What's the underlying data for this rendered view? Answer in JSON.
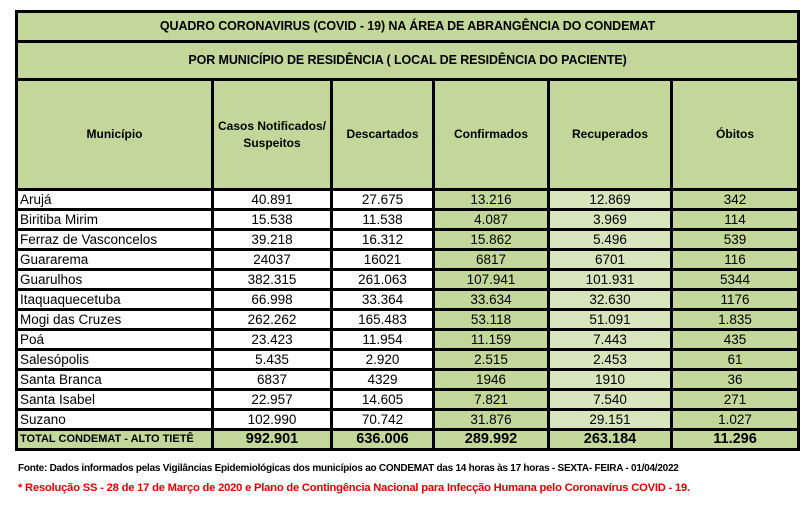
{
  "title": "QUADRO CORONAVIRUS (COVID - 19) NA ÁREA DE ABRANGÊNCIA DO CONDEMAT",
  "subtitle": "POR MUNICÍPIO DE RESIDÊNCIA ( LOCAL DE RESIDÊNCIA DO PACIENTE)",
  "columns": {
    "municipio": "Município",
    "notificados": "Casos Notificados/ Suspeitos",
    "descartados": "Descartados",
    "confirmados": "Confirmados",
    "recuperados": "Recuperados",
    "obitos": "Óbitos"
  },
  "rows": [
    {
      "municipio": "Arujá",
      "notificados": "40.891",
      "descartados": "27.675",
      "confirmados": "13.216",
      "recuperados": "12.869",
      "obitos": "342"
    },
    {
      "municipio": "Biritiba Mirim",
      "notificados": "15.538",
      "descartados": "11.538",
      "confirmados": "4.087",
      "recuperados": "3.969",
      "obitos": "114"
    },
    {
      "municipio": "Ferraz de Vasconcelos",
      "notificados": "39.218",
      "descartados": "16.312",
      "confirmados": "15.862",
      "recuperados": "5.496",
      "obitos": "539"
    },
    {
      "municipio": "Guararema",
      "notificados": "24037",
      "descartados": "16021",
      "confirmados": "6817",
      "recuperados": "6701",
      "obitos": "116"
    },
    {
      "municipio": "Guarulhos",
      "notificados": "382.315",
      "descartados": "261.063",
      "confirmados": "107.941",
      "recuperados": "101.931",
      "obitos": "5344"
    },
    {
      "municipio": "Itaquaquecetuba",
      "notificados": "66.998",
      "descartados": "33.364",
      "confirmados": "33.634",
      "recuperados": "32.630",
      "obitos": "1176"
    },
    {
      "municipio": "Mogi das Cruzes",
      "notificados": "262.262",
      "descartados": "165.483",
      "confirmados": "53.118",
      "recuperados": "51.091",
      "obitos": "1.835"
    },
    {
      "municipio": "Poá",
      "notificados": "23.423",
      "descartados": "11.954",
      "confirmados": "11.159",
      "recuperados": "7.443",
      "obitos": "435"
    },
    {
      "municipio": "Salesópolis",
      "notificados": "5.435",
      "descartados": "2.920",
      "confirmados": "2.515",
      "recuperados": "2.453",
      "obitos": "61"
    },
    {
      "municipio": "Santa Branca",
      "notificados": "6837",
      "descartados": "4329",
      "confirmados": "1946",
      "recuperados": "1910",
      "obitos": "36"
    },
    {
      "municipio": "Santa Isabel",
      "notificados": "22.957",
      "descartados": "14.605",
      "confirmados": "7.821",
      "recuperados": "7.540",
      "obitos": "271"
    },
    {
      "municipio": "Suzano",
      "notificados": "102.990",
      "descartados": "70.742",
      "confirmados": "31.876",
      "recuperados": "29.151",
      "obitos": "1.027"
    }
  ],
  "total": {
    "municipio": "TOTAL CONDEMAT - ALTO TIETÊ",
    "notificados": "992.901",
    "descartados": "636.006",
    "confirmados": "289.992",
    "recuperados": "263.184",
    "obitos": "11.296"
  },
  "footer": {
    "fonte": "Fonte: Dados informados pelas Vigilâncias Epidemiológicas dos municípios ao CONDEMAT das 14 horas às 17 horas - SEXTA- FEIRA - 01/04/2022",
    "nota": "* Resolução SS - 28 de 17 de Março de 2020 e Plano de Contingência Nacional para Infecção Humana pelo Coronavírus COVID - 19."
  },
  "colors": {
    "header_green": "#c4d79b",
    "light_green": "#d8e4bc",
    "note_red": "#e00000"
  }
}
